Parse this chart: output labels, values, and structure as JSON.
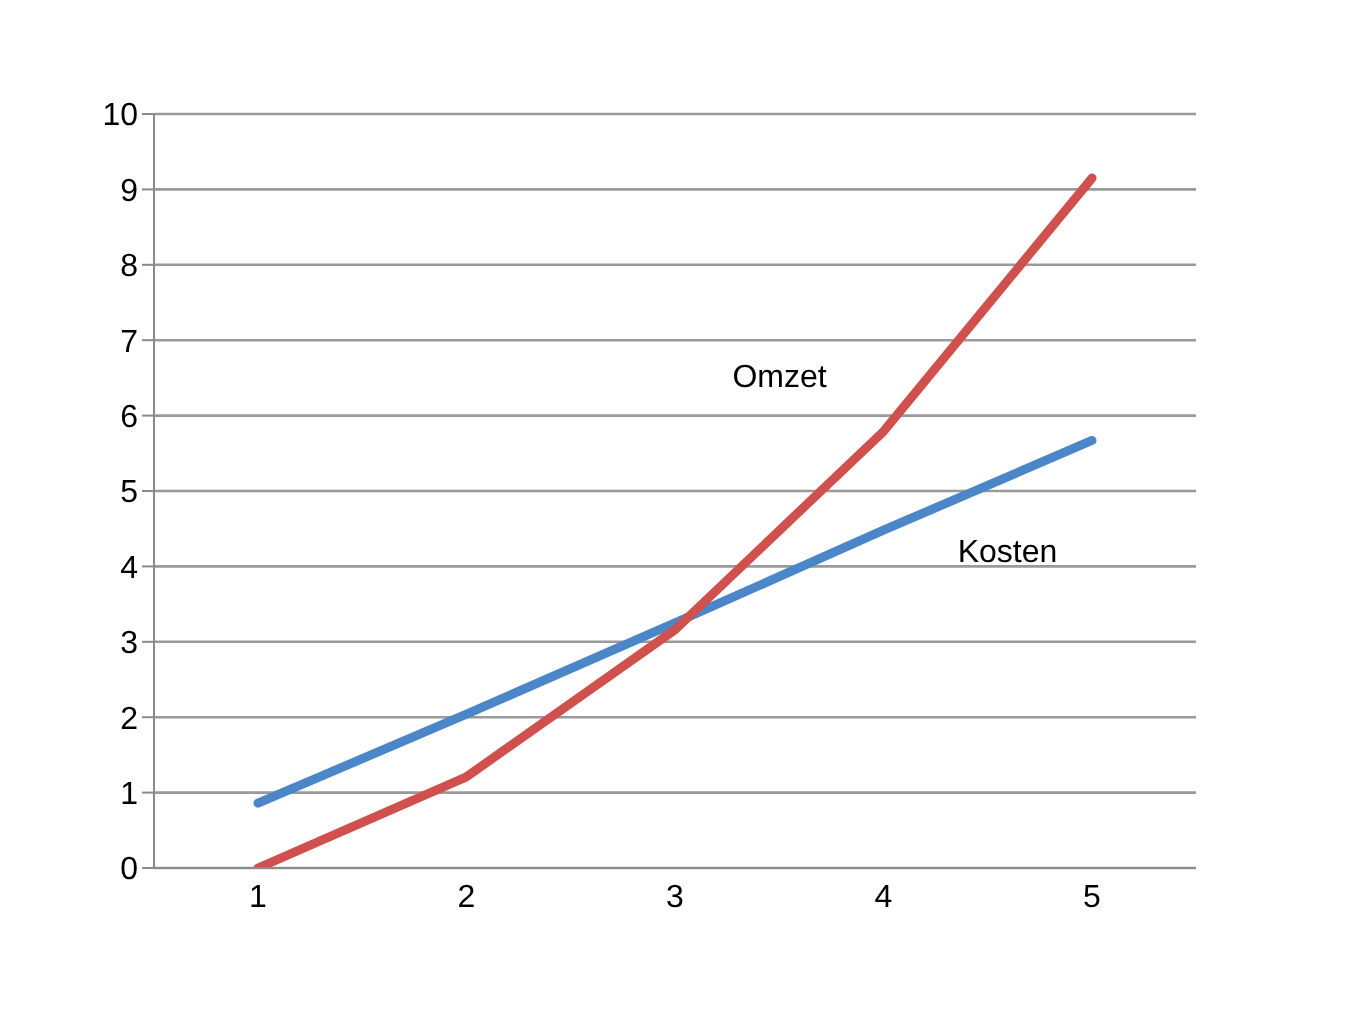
{
  "chart_data": {
    "type": "line",
    "categories": [
      "1",
      "2",
      "3",
      "4",
      "5"
    ],
    "series": [
      {
        "name": "Kosten",
        "color": "#4a86c8",
        "values": [
          0.86,
          2.04,
          3.25,
          4.48,
          5.67
        ]
      },
      {
        "name": "Omzet",
        "color": "#d0504d",
        "values": [
          0,
          1.21,
          3.16,
          5.79,
          9.15
        ]
      }
    ],
    "ylim": [
      0,
      10
    ],
    "yticks": [
      0,
      1,
      2,
      3,
      4,
      5,
      6,
      7,
      8,
      9,
      10
    ],
    "grid": "y",
    "marker": "none",
    "line_style": "solid"
  }
}
